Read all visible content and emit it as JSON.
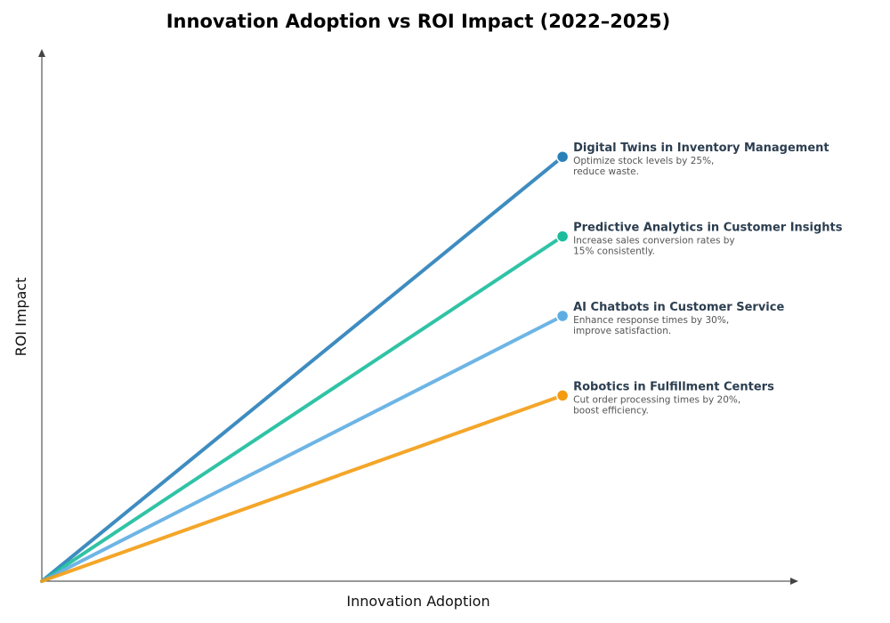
{
  "chart_data": {
    "type": "line",
    "title": "Innovation Adoption vs ROI Impact (2022–2025)",
    "xlabel": "Innovation Adoption",
    "ylabel": "ROI Impact",
    "xlim": [
      0,
      1
    ],
    "ylim": [
      0,
      1
    ],
    "grid": false,
    "ticks": false,
    "series": [
      {
        "name": "Digital Twins in Inventory Management",
        "description": [
          "Optimize stock levels by 25%,",
          "reduce waste."
        ],
        "color": "#2980b9",
        "x": [
          0,
          0.69
        ],
        "y": [
          0,
          0.8
        ]
      },
      {
        "name": "Predictive Analytics in Customer Insights",
        "description": [
          "Increase sales conversion rates by",
          "15% consistently."
        ],
        "color": "#1abc9c",
        "x": [
          0,
          0.69
        ],
        "y": [
          0,
          0.65
        ]
      },
      {
        "name": "AI Chatbots in Customer Service",
        "description": [
          "Enhance response times by 30%,",
          "improve satisfaction."
        ],
        "color": "#5dade2",
        "x": [
          0,
          0.69
        ],
        "y": [
          0,
          0.5
        ]
      },
      {
        "name": "Robotics in Fulfillment Centers",
        "description": [
          "Cut order processing times by 20%,",
          "boost efficiency."
        ],
        "color": "#f39c12",
        "x": [
          0,
          0.69
        ],
        "y": [
          0,
          0.35
        ]
      }
    ]
  }
}
